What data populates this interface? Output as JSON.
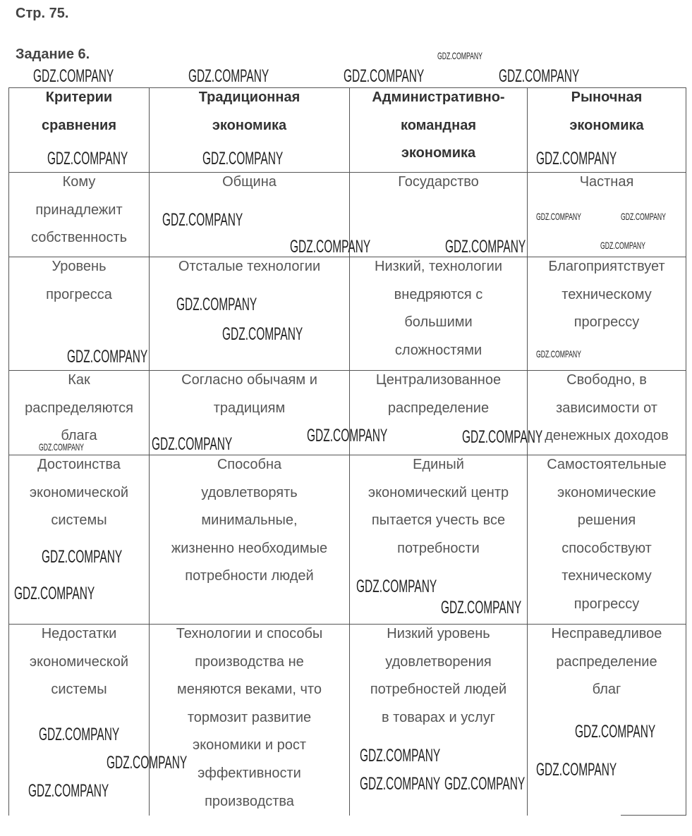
{
  "page_label": "Стр. 75.",
  "task_label": "Задание 6.",
  "table": {
    "header": [
      [
        "Критерии",
        "сравнения"
      ],
      [
        "Традиционная",
        "экономика"
      ],
      [
        "Административно-",
        "командная",
        "экономика"
      ],
      [
        "Рыночная",
        "экономика"
      ]
    ],
    "rows": [
      [
        [
          "Кому",
          "принадлежит",
          "собственность"
        ],
        [
          "Община"
        ],
        [
          "Государство"
        ],
        [
          "Частная"
        ]
      ],
      [
        [
          "Уровень",
          "прогресса"
        ],
        [
          "Отсталые технологии"
        ],
        [
          "Низкий, технологии",
          "внедряются с",
          "большими",
          "сложностями"
        ],
        [
          "Благоприятствует",
          "техническому",
          "прогрессу"
        ]
      ],
      [
        [
          "Как",
          "распределяются",
          "блага"
        ],
        [
          "Согласно обычаям и",
          "традициям"
        ],
        [
          "Централизованное",
          "распределение"
        ],
        [
          "Свободно, в",
          "зависимости от",
          "денежных доходов"
        ]
      ],
      [
        [
          "Достоинства",
          "экономической",
          "системы"
        ],
        [
          "Способна",
          "удовлетворять",
          "минимальные,",
          "жизненно необходимые",
          "потребности людей"
        ],
        [
          "Единый",
          "экономический центр",
          "пытается учесть все",
          "потребности"
        ],
        [
          "Самостоятельные",
          "экономические",
          "решения",
          "способствуют",
          "техническому",
          "прогрессу"
        ]
      ],
      [
        [
          "Недостатки",
          "экономической",
          "системы"
        ],
        [
          "Технологии и способы",
          "производства не",
          "меняются веками, что",
          "тормозит развитие",
          "экономики и рост",
          "эффективности",
          "производства"
        ],
        [
          "Низкий уровень",
          "удовлетворения",
          "потребностей людей",
          "в товарах и услуг"
        ],
        [
          "Несправедливое",
          "распределение",
          "благ"
        ]
      ]
    ]
  },
  "watermark": {
    "text": "GDZ.COMPANY"
  }
}
